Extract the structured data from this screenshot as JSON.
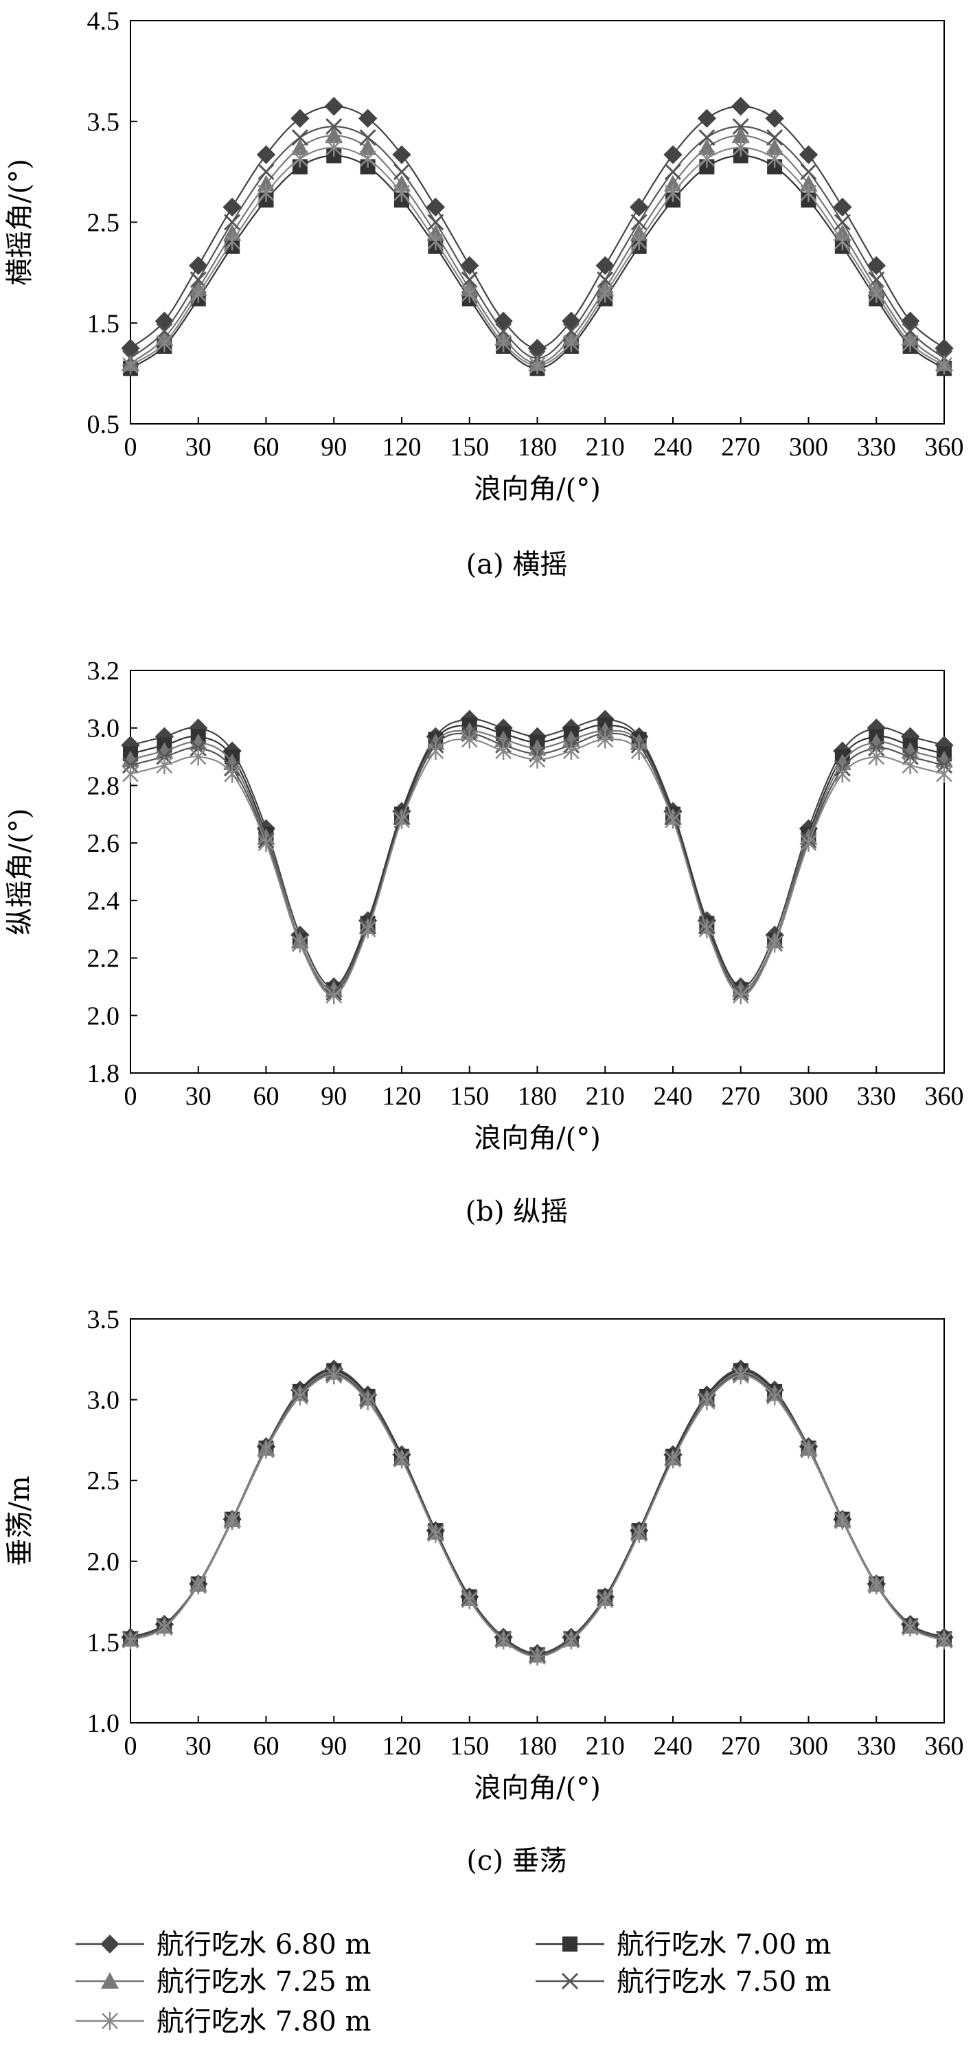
{
  "legend": [
    {
      "label": "航行吃水 6.80 m",
      "marker": "diamond",
      "color": "#444444"
    },
    {
      "label": "航行吃水 7.00 m",
      "marker": "square",
      "color": "#333333"
    },
    {
      "label": "航行吃水 7.25 m",
      "marker": "triangle",
      "color": "#777777"
    },
    {
      "label": "航行吃水 7.50 m",
      "marker": "x",
      "color": "#555555"
    },
    {
      "label": "航行吃水 7.80 m",
      "marker": "star",
      "color": "#888888"
    }
  ],
  "chart_data": [
    {
      "type": "line",
      "caption": "(a) 横摇",
      "xlabel": "浪向角/(°)",
      "ylabel": "横摇角/(°)",
      "xlim": [
        0,
        360
      ],
      "ylim": [
        0.5,
        4.5
      ],
      "xticks": [
        0,
        30,
        60,
        90,
        120,
        150,
        180,
        210,
        240,
        270,
        300,
        330,
        360
      ],
      "yticks": [
        0.5,
        1.5,
        2.5,
        3.5,
        4.5
      ],
      "ytick_labels": [
        "0.5",
        "1.5",
        "2.5",
        "3.5",
        "4.5"
      ],
      "x": [
        0,
        15,
        30,
        45,
        60,
        75,
        90,
        105,
        120,
        135,
        150,
        165,
        180,
        195,
        210,
        225,
        240,
        255,
        270,
        285,
        300,
        315,
        330,
        345,
        360
      ],
      "series": [
        {
          "values": [
            1.25,
            1.52,
            2.07,
            2.65,
            3.17,
            3.53,
            3.65,
            3.53,
            3.17,
            2.65,
            2.07,
            1.52,
            1.25,
            1.52,
            2.07,
            2.65,
            3.17,
            3.53,
            3.65,
            3.53,
            3.17,
            2.65,
            2.07,
            1.52,
            1.25
          ]
        },
        {
          "values": [
            1.05,
            1.27,
            1.74,
            2.26,
            2.72,
            3.05,
            3.16,
            3.05,
            2.72,
            2.26,
            1.74,
            1.27,
            1.05,
            1.27,
            1.74,
            2.26,
            2.72,
            3.05,
            3.16,
            3.05,
            2.72,
            2.26,
            1.74,
            1.27,
            1.05
          ]
        },
        {
          "values": [
            1.1,
            1.35,
            1.84,
            2.39,
            2.88,
            3.24,
            3.36,
            3.24,
            2.88,
            2.39,
            1.84,
            1.35,
            1.1,
            1.35,
            1.84,
            2.39,
            2.88,
            3.24,
            3.36,
            3.24,
            2.88,
            2.39,
            1.84,
            1.35,
            1.1
          ]
        },
        {
          "values": [
            1.15,
            1.42,
            1.93,
            2.5,
            3.0,
            3.34,
            3.45,
            3.34,
            3.0,
            2.5,
            1.93,
            1.42,
            1.15,
            1.42,
            1.93,
            2.5,
            3.0,
            3.34,
            3.45,
            3.34,
            3.0,
            2.5,
            1.93,
            1.42,
            1.15
          ]
        },
        {
          "values": [
            1.08,
            1.3,
            1.79,
            2.31,
            2.79,
            3.13,
            3.24,
            3.13,
            2.79,
            2.31,
            1.79,
            1.3,
            1.08,
            1.3,
            1.79,
            2.31,
            2.79,
            3.13,
            3.24,
            3.13,
            2.79,
            2.31,
            1.79,
            1.3,
            1.08
          ]
        }
      ]
    },
    {
      "type": "line",
      "caption": "(b) 纵摇",
      "xlabel": "浪向角/(°)",
      "ylabel": "纵摇角/(°)",
      "xlim": [
        0,
        360
      ],
      "ylim": [
        1.8,
        3.2
      ],
      "xticks": [
        0,
        30,
        60,
        90,
        120,
        150,
        180,
        210,
        240,
        270,
        300,
        330,
        360
      ],
      "yticks": [
        1.8,
        2.0,
        2.2,
        2.4,
        2.6,
        2.8,
        3.0,
        3.2
      ],
      "ytick_labels": [
        "1.8",
        "2.0",
        "2.2",
        "2.4",
        "2.6",
        "2.8",
        "3.0",
        "3.2"
      ],
      "x": [
        0,
        15,
        30,
        45,
        60,
        75,
        90,
        105,
        120,
        135,
        150,
        165,
        180,
        195,
        210,
        225,
        240,
        255,
        270,
        285,
        300,
        315,
        330,
        345,
        360
      ],
      "series": [
        {
          "values": [
            2.94,
            2.97,
            3.0,
            2.92,
            2.65,
            2.28,
            2.1,
            2.33,
            2.71,
            2.97,
            3.03,
            3.0,
            2.97,
            3.0,
            3.03,
            2.97,
            2.71,
            2.33,
            2.1,
            2.28,
            2.65,
            2.92,
            3.0,
            2.97,
            2.94
          ]
        },
        {
          "values": [
            2.91,
            2.94,
            2.97,
            2.9,
            2.63,
            2.26,
            2.09,
            2.32,
            2.7,
            2.96,
            3.01,
            2.98,
            2.95,
            2.98,
            3.01,
            2.96,
            2.7,
            2.32,
            2.09,
            2.26,
            2.63,
            2.9,
            2.97,
            2.94,
            2.91
          ]
        },
        {
          "values": [
            2.89,
            2.92,
            2.95,
            2.88,
            2.62,
            2.26,
            2.09,
            2.31,
            2.69,
            2.95,
            2.99,
            2.96,
            2.93,
            2.96,
            2.99,
            2.95,
            2.69,
            2.31,
            2.09,
            2.26,
            2.62,
            2.88,
            2.95,
            2.92,
            2.89
          ]
        },
        {
          "values": [
            2.87,
            2.9,
            2.93,
            2.86,
            2.61,
            2.25,
            2.08,
            2.31,
            2.69,
            2.94,
            2.98,
            2.94,
            2.91,
            2.94,
            2.98,
            2.94,
            2.69,
            2.31,
            2.08,
            2.25,
            2.61,
            2.86,
            2.93,
            2.9,
            2.87
          ]
        },
        {
          "values": [
            2.84,
            2.87,
            2.9,
            2.84,
            2.6,
            2.25,
            2.07,
            2.3,
            2.68,
            2.92,
            2.96,
            2.92,
            2.89,
            2.92,
            2.96,
            2.92,
            2.68,
            2.3,
            2.07,
            2.25,
            2.6,
            2.84,
            2.9,
            2.87,
            2.84
          ]
        }
      ]
    },
    {
      "type": "line",
      "caption": "(c) 垂荡",
      "xlabel": "浪向角/(°)",
      "ylabel": "垂荡/m",
      "xlim": [
        0,
        360
      ],
      "ylim": [
        1.0,
        3.5
      ],
      "xticks": [
        0,
        30,
        60,
        90,
        120,
        150,
        180,
        210,
        240,
        270,
        300,
        330,
        360
      ],
      "yticks": [
        1.0,
        1.5,
        2.0,
        2.5,
        3.0,
        3.5
      ],
      "ytick_labels": [
        "1.0",
        "1.5",
        "2.0",
        "2.5",
        "3.0",
        "3.5"
      ],
      "x": [
        0,
        15,
        30,
        45,
        60,
        75,
        90,
        105,
        120,
        135,
        150,
        165,
        180,
        195,
        210,
        225,
        240,
        255,
        270,
        285,
        300,
        315,
        330,
        345,
        360
      ],
      "series": [
        {
          "values": [
            1.53,
            1.61,
            1.86,
            2.26,
            2.71,
            3.06,
            3.19,
            3.03,
            2.66,
            2.19,
            1.78,
            1.53,
            1.43,
            1.53,
            1.78,
            2.19,
            2.66,
            3.03,
            3.19,
            3.06,
            2.71,
            2.26,
            1.86,
            1.61,
            1.53
          ]
        },
        {
          "values": [
            1.52,
            1.6,
            1.86,
            2.26,
            2.7,
            3.05,
            3.18,
            3.02,
            2.65,
            2.19,
            1.78,
            1.52,
            1.42,
            1.52,
            1.78,
            2.19,
            2.65,
            3.02,
            3.18,
            3.05,
            2.7,
            2.26,
            1.86,
            1.6,
            1.52
          ]
        },
        {
          "values": [
            1.52,
            1.6,
            1.86,
            2.26,
            2.7,
            3.04,
            3.17,
            3.01,
            2.64,
            2.18,
            1.77,
            1.52,
            1.42,
            1.52,
            1.77,
            2.18,
            2.64,
            3.01,
            3.17,
            3.04,
            2.7,
            2.26,
            1.86,
            1.6,
            1.52
          ]
        },
        {
          "values": [
            1.52,
            1.6,
            1.85,
            2.25,
            2.69,
            3.03,
            3.16,
            3.0,
            2.64,
            2.18,
            1.77,
            1.52,
            1.42,
            1.52,
            1.77,
            2.18,
            2.64,
            3.0,
            3.16,
            3.03,
            2.69,
            2.25,
            1.85,
            1.6,
            1.52
          ]
        },
        {
          "values": [
            1.51,
            1.59,
            1.85,
            2.25,
            2.69,
            3.02,
            3.15,
            2.99,
            2.63,
            2.17,
            1.76,
            1.51,
            1.41,
            1.51,
            1.76,
            2.17,
            2.63,
            2.99,
            3.15,
            3.02,
            2.69,
            2.25,
            1.85,
            1.59,
            1.51
          ]
        }
      ]
    }
  ]
}
